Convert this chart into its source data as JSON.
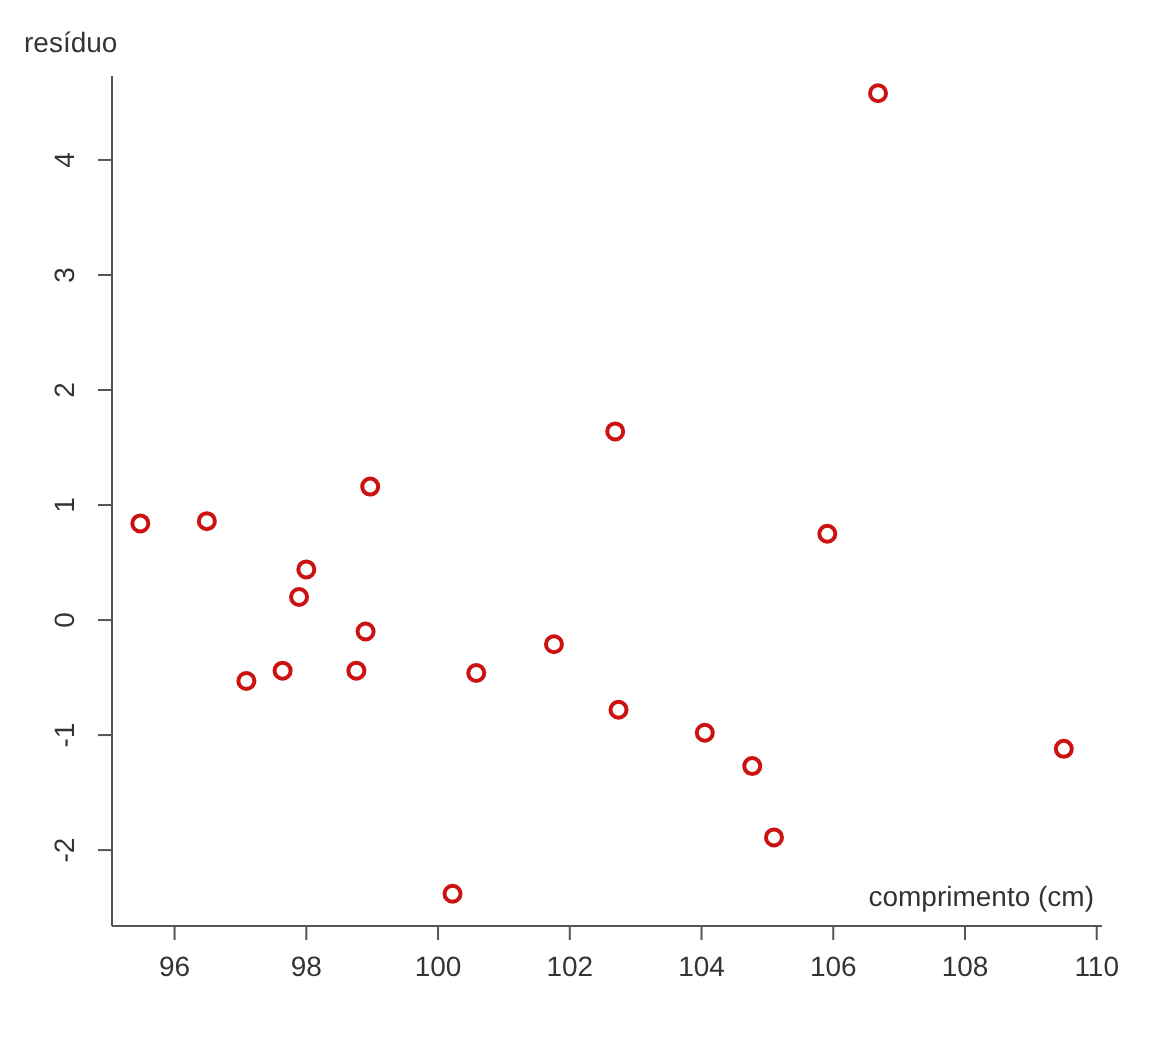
{
  "chart_data": {
    "type": "scatter",
    "xlabel": "comprimento (cm)",
    "ylabel": "resíduo",
    "x": [
      95.48,
      96.49,
      97.09,
      97.64,
      97.89,
      98.0,
      98.76,
      98.9,
      98.97,
      100.22,
      100.58,
      101.76,
      102.69,
      102.74,
      104.05,
      104.77,
      105.1,
      105.91,
      106.68,
      109.5
    ],
    "values": [
      0.84,
      0.86,
      -0.53,
      -0.44,
      0.2,
      0.44,
      -0.44,
      -0.1,
      1.16,
      -2.38,
      -0.46,
      -0.21,
      1.64,
      -0.78,
      -0.98,
      -1.27,
      -1.89,
      0.75,
      4.58,
      -1.12
    ],
    "color": "#cc1111",
    "marker": "circle",
    "xlim": [
      95.05,
      110.08
    ],
    "xticks": [
      96,
      98,
      100,
      102,
      104,
      106,
      108,
      110
    ],
    "ylim": [
      -2.66,
      4.73
    ],
    "yticks": [
      -2,
      -1,
      0,
      1,
      2,
      3,
      4
    ]
  }
}
